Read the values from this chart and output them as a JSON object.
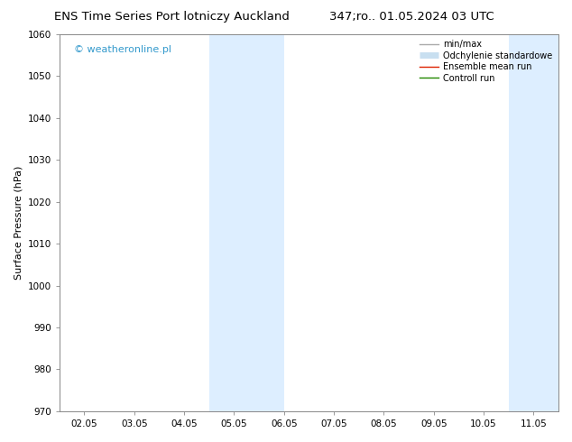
{
  "title_left": "ENS Time Series Port lotniczy Auckland",
  "title_right": "347;ro.. 01.05.2024 03 UTC",
  "ylabel": "Surface Pressure (hPa)",
  "ylim": [
    970,
    1060
  ],
  "yticks": [
    970,
    980,
    990,
    1000,
    1010,
    1020,
    1030,
    1040,
    1050,
    1060
  ],
  "xtick_labels": [
    "02.05",
    "03.05",
    "04.05",
    "05.05",
    "06.05",
    "07.05",
    "08.05",
    "09.05",
    "10.05",
    "11.05"
  ],
  "xtick_positions": [
    0,
    1,
    2,
    3,
    4,
    5,
    6,
    7,
    8,
    9
  ],
  "xlim": [
    -0.5,
    9.5
  ],
  "shaded_regions": [
    {
      "x_start": 2.5,
      "x_end": 4.0
    },
    {
      "x_start": 8.5,
      "x_end": 9.5
    }
  ],
  "shaded_color": "#ddeeff",
  "watermark": "© weatheronline.pl",
  "watermark_color": "#3399cc",
  "bg_color": "#ffffff",
  "legend_items": [
    {
      "label": "min/max",
      "color": "#aaaaaa",
      "lw": 1.0,
      "type": "line"
    },
    {
      "label": "Odchylenie standardowe",
      "color": "#c8dff0",
      "lw": 5,
      "type": "line"
    },
    {
      "label": "Ensemble mean run",
      "color": "#dd2200",
      "lw": 1.0,
      "type": "line"
    },
    {
      "label": "Controll run",
      "color": "#228800",
      "lw": 1.0,
      "type": "line"
    }
  ],
  "title_fontsize": 9.5,
  "axis_label_fontsize": 8,
  "tick_fontsize": 7.5,
  "watermark_fontsize": 8,
  "legend_fontsize": 7
}
